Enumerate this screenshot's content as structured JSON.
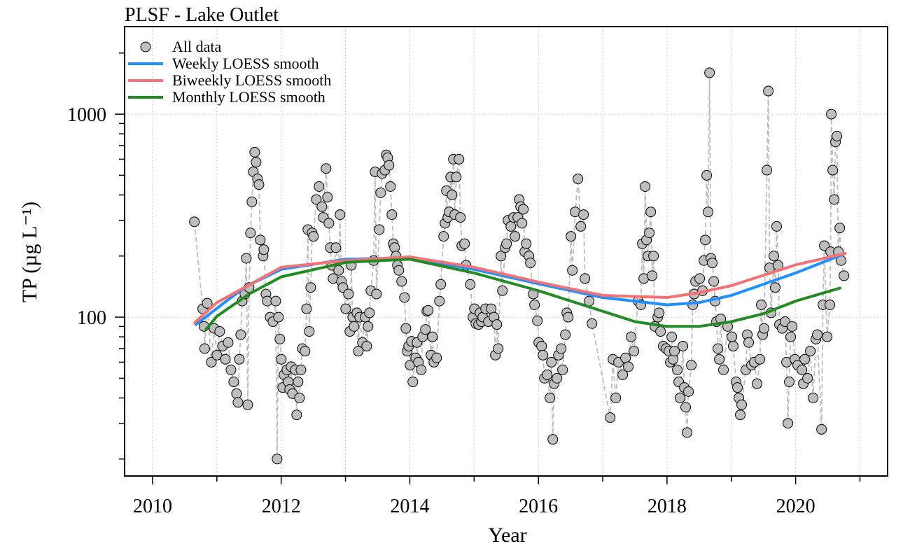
{
  "chart_data": {
    "type": "scatter",
    "title": "PLSF - Lake Outlet",
    "x_label": "Year",
    "y_label": "TP (µg L⁻¹)",
    "xlim": [
      2009.565,
      2021.43
    ],
    "ylim": [
      16.5,
      2700
    ],
    "yscale": "log",
    "xticks": [
      2010,
      2012,
      2014,
      2016,
      2018,
      2020
    ],
    "x_minor_ticks": [
      2011,
      2013,
      2015,
      2017,
      2019,
      2021
    ],
    "yticks": [
      100,
      1000
    ],
    "y_minor_ticks": [
      20,
      30,
      40,
      50,
      60,
      70,
      80,
      90,
      200,
      300,
      400,
      500,
      600,
      700,
      800,
      900,
      2000
    ],
    "grid": true,
    "legend": "top-left",
    "series": [
      {
        "name": "All data",
        "color": "#bebebe",
        "style": "points",
        "x": [
          2010.65,
          2010.78,
          2010.8,
          2010.81,
          2010.85,
          2010.914,
          2010.957,
          2011.001,
          2011.044,
          2011.088,
          2011.132,
          2011.175,
          2011.219,
          2011.262,
          2011.306,
          2011.328,
          2011.349,
          2011.371,
          2011.393,
          2011.436,
          2011.458,
          2011.48,
          2011.501,
          2011.523,
          2011.545,
          2011.567,
          2011.588,
          2011.61,
          2011.632,
          2011.654,
          2011.676,
          2011.719,
          2011.73,
          2011.763,
          2011.784,
          2011.828,
          2011.871,
          2011.915,
          2011.937,
          2011.958,
          2011.98,
          2012.002,
          2012.024,
          2012.045,
          2012.089,
          2012.111,
          2012.132,
          2012.154,
          2012.176,
          2012.22,
          2012.241,
          2012.263,
          2012.285,
          2012.307,
          2012.328,
          2012.372,
          2012.394,
          2012.415,
          2012.437,
          2012.459,
          2012.481,
          2012.502,
          2012.546,
          2012.589,
          2012.633,
          2012.655,
          2012.698,
          2012.72,
          2012.742,
          2012.764,
          2012.785,
          2012.807,
          2012.851,
          2012.894,
          2012.916,
          2012.938,
          2012.96,
          2013.003,
          2013.047,
          2013.068,
          2013.09,
          2013.112,
          2013.134,
          2013.177,
          2013.199,
          2013.221,
          2013.264,
          2013.308,
          2013.33,
          2013.351,
          2013.373,
          2013.395,
          2013.438,
          2013.46,
          2013.482,
          2013.525,
          2013.547,
          2013.569,
          2013.612,
          2013.634,
          2013.656,
          2013.677,
          2013.699,
          2013.721,
          2013.743,
          2013.764,
          2013.786,
          2013.808,
          2013.83,
          2013.873,
          2013.917,
          2013.939,
          2013.96,
          2013.982,
          2014.004,
          2014.026,
          2014.047,
          2014.091,
          2014.113,
          2014.134,
          2014.178,
          2014.2,
          2014.243,
          2014.265,
          2014.287,
          2014.33,
          2014.352,
          2014.374,
          2014.417,
          2014.461,
          2014.482,
          2014.526,
          2014.548,
          2014.57,
          2014.591,
          2014.613,
          2014.635,
          2014.657,
          2014.678,
          2014.7,
          2014.722,
          2014.765,
          2014.787,
          2014.809,
          2014.852,
          2014.874,
          2014.94,
          2014.983,
          2015.005,
          2015.027,
          2015.07,
          2015.092,
          2015.114,
          2015.135,
          2015.179,
          2015.222,
          2015.266,
          2015.309,
          2015.331,
          2015.353,
          2015.375,
          2015.418,
          2015.44,
          2015.484,
          2015.505,
          2015.527,
          2015.571,
          2015.614,
          2015.636,
          2015.68,
          2015.701,
          2015.723,
          2015.745,
          2015.766,
          2015.788,
          2015.81,
          2015.853,
          2015.875,
          2015.919,
          2015.94,
          2015.984,
          2016.006,
          2016.049,
          2016.071,
          2016.093,
          2016.136,
          2016.18,
          2016.202,
          2016.224,
          2016.245,
          2016.289,
          2016.311,
          2016.354,
          2016.376,
          2016.419,
          2016.441,
          2016.463,
          2016.506,
          2016.528,
          2016.572,
          2016.615,
          2016.659,
          2016.702,
          2016.724,
          2016.789,
          2016.833,
          2017.116,
          2017.159,
          2017.203,
          2017.246,
          2017.311,
          2017.355,
          2017.398,
          2017.442,
          2017.486,
          2017.551,
          2017.594,
          2017.616,
          2017.638,
          2017.66,
          2017.681,
          2017.703,
          2017.725,
          2017.747,
          2017.768,
          2017.79,
          2017.812,
          2017.856,
          2017.877,
          2017.899,
          2017.942,
          2017.986,
          2018.029,
          2018.051,
          2018.073,
          2018.094,
          2018.116,
          2018.16,
          2018.182,
          2018.203,
          2018.247,
          2018.269,
          2018.29,
          2018.312,
          2018.334,
          2018.378,
          2018.4,
          2018.421,
          2018.443,
          2018.508,
          2018.552,
          2018.574,
          2018.595,
          2018.617,
          2018.639,
          2018.661,
          2018.682,
          2018.704,
          2018.726,
          2018.748,
          2018.769,
          2018.791,
          2018.813,
          2018.835,
          2018.878,
          2018.943,
          2019.009,
          2019.03,
          2019.074,
          2019.096,
          2019.117,
          2019.139,
          2019.161,
          2019.226,
          2019.248,
          2019.27,
          2019.313,
          2019.357,
          2019.4,
          2019.444,
          2019.466,
          2019.487,
          2019.509,
          2019.553,
          2019.575,
          2019.596,
          2019.618,
          2019.662,
          2019.683,
          2019.705,
          2019.727,
          2019.749,
          2019.792,
          2019.836,
          2019.858,
          2019.88,
          2019.901,
          2019.923,
          2019.945,
          2019.989,
          2020.032,
          2020.098,
          2020.12,
          2020.141,
          2020.185,
          2020.228,
          2020.272,
          2020.315,
          2020.337,
          2020.403,
          2020.424,
          2020.446,
          2020.49,
          2020.533,
          2020.544,
          2020.555,
          2020.577,
          2020.599,
          2020.62,
          2020.642,
          2020.664,
          2020.686,
          2020.707,
          2020.751
        ],
        "values": [
          295,
          110,
          90,
          70,
          117,
          60,
          88,
          65,
          85,
          72,
          62,
          75,
          55,
          48,
          42,
          38,
          62,
          82,
          120,
          130,
          195,
          37,
          140,
          260,
          370,
          520,
          650,
          580,
          480,
          450,
          240,
          200,
          215,
          130,
          120,
          100,
          95,
          120,
          20,
          100,
          78,
          62,
          45,
          52,
          55,
          48,
          44,
          57,
          42,
          55,
          33,
          48,
          40,
          55,
          70,
          68,
          110,
          270,
          85,
          140,
          260,
          250,
          380,
          440,
          350,
          310,
          540,
          390,
          290,
          220,
          180,
          155,
          220,
          170,
          320,
          150,
          140,
          110,
          130,
          85,
          180,
          100,
          90,
          105,
          68,
          100,
          75,
          100,
          72,
          90,
          105,
          135,
          190,
          520,
          130,
          270,
          410,
          510,
          530,
          630,
          610,
          560,
          440,
          320,
          230,
          220,
          200,
          180,
          170,
          150,
          125,
          88,
          68,
          72,
          58,
          76,
          48,
          63,
          75,
          60,
          55,
          80,
          87,
          107,
          108,
          65,
          80,
          60,
          63,
          120,
          145,
          250,
          290,
          420,
          310,
          330,
          490,
          400,
          600,
          320,
          490,
          600,
          310,
          225,
          230,
          180,
          145,
          100,
          110,
          93,
          92,
          105,
          95,
          100,
          110,
          95,
          110,
          100,
          65,
          92,
          70,
          200,
          135,
          220,
          230,
          300,
          280,
          310,
          250,
          310,
          380,
          350,
          290,
          340,
          210,
          230,
          200,
          185,
          130,
          115,
          96,
          75,
          72,
          65,
          50,
          52,
          40,
          60,
          25,
          47,
          50,
          65,
          70,
          55,
          82,
          105,
          100,
          250,
          170,
          330,
          480,
          280,
          320,
          155,
          120,
          93,
          32,
          62,
          40,
          60,
          52,
          63,
          57,
          80,
          68,
          120,
          115,
          230,
          155,
          440,
          240,
          200,
          260,
          330,
          160,
          200,
          90,
          100,
          105,
          85,
          72,
          70,
          68,
          60,
          80,
          62,
          68,
          55,
          48,
          40,
          72,
          45,
          36,
          27,
          43,
          58,
          115,
          130,
          150,
          155,
          135,
          190,
          240,
          500,
          330,
          1600,
          195,
          185,
          150,
          120,
          95,
          70,
          62,
          98,
          55,
          90,
          80,
          72,
          48,
          45,
          40,
          33,
          37,
          55,
          82,
          75,
          58,
          60,
          47,
          62,
          115,
          82,
          88,
          530,
          1300,
          175,
          105,
          200,
          140,
          280,
          180,
          92,
          88,
          95,
          60,
          30,
          48,
          80,
          90,
          62,
          58,
          55,
          47,
          62,
          50,
          68,
          40,
          78,
          82,
          28,
          115,
          225,
          80,
          115,
          210,
          1000,
          530,
          380,
          730,
          780,
          210,
          275,
          190,
          160
        ]
      },
      {
        "name": "Weekly LOESS smooth",
        "color": "#1e90ff",
        "style": "line",
        "x": [
          2010.675,
          2011.22,
          2011.48,
          2012,
          2013,
          2014,
          2015,
          2016,
          2017,
          2018,
          2018.5,
          2019,
          2020,
          2020.77
        ],
        "values": [
          92,
          125,
          143,
          172,
          193,
          196,
          172,
          146,
          125,
          115,
          118,
          128,
          165,
          206
        ]
      },
      {
        "name": "Biweekly LOESS smooth",
        "color": "#f47174",
        "style": "line",
        "x": [
          2010.655,
          2011,
          2012,
          2013,
          2014,
          2015,
          2016,
          2017,
          2018,
          2018.5,
          2019,
          2020,
          2020.77
        ],
        "values": [
          94,
          118,
          176,
          190,
          198,
          176,
          149,
          128,
          125,
          132,
          143,
          181,
          206
        ]
      },
      {
        "name": "Monthly LOESS smooth",
        "color": "#228b22",
        "style": "line",
        "x": [
          2010.83,
          2011,
          2011.5,
          2012,
          2013,
          2014,
          2015,
          2016,
          2017,
          2017.5,
          2018,
          2018.5,
          2019,
          2019.5,
          2020,
          2020.69
        ],
        "values": [
          87,
          101,
          130,
          158,
          186,
          193,
          165,
          135,
          107,
          95,
          90,
          90,
          95,
          104,
          120,
          139
        ]
      }
    ]
  }
}
